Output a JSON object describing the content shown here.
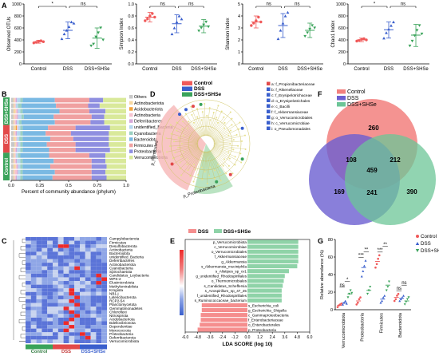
{
  "colors": {
    "control": "#f05a5a",
    "dss": "#3a5fcd",
    "dss_shse": "#3aa35a",
    "ctrl_bg": "#f6b4b4",
    "dss_bg": "#f5f5c8",
    "shse_bg": "#a8dab5",
    "venn_control": "#f2807e",
    "venn_dss": "#6c5fd1",
    "venn_shse": "#6cc597",
    "lda_dss": "#f58e8e",
    "lda_shse": "#8fd3a8"
  },
  "panels": {
    "A": "A",
    "B": "B",
    "C": "C",
    "D": "D",
    "E": "E",
    "F": "F",
    "G": "G"
  },
  "sig": {
    "ns": "ns",
    "star": "*",
    "star2": "**",
    "star3": "***"
  },
  "chart_data": [
    {
      "id": "A1",
      "type": "scatter",
      "ylabel": "Observed OTUs",
      "ylim": [
        0,
        1000
      ],
      "yticks": [
        0,
        200,
        400,
        600,
        800,
        1000
      ],
      "categories": [
        "Control",
        "DSS",
        "DSS+SHSe"
      ],
      "means": [
        370,
        560,
        430
      ],
      "sd_low": [
        345,
        420,
        260
      ],
      "sd_high": [
        395,
        700,
        600
      ],
      "points": [
        [
          350,
          360,
          375,
          385,
          370
        ],
        [
          420,
          500,
          560,
          620,
          700,
          680
        ],
        [
          300,
          330,
          450,
          520,
          600,
          400
        ]
      ],
      "brackets": [
        {
          "from": 0,
          "to": 1,
          "label": "*"
        },
        {
          "from": 1,
          "to": 2,
          "label": "ns"
        }
      ]
    },
    {
      "id": "A2",
      "type": "scatter",
      "ylabel": "Simpson Index",
      "ylim": [
        0,
        1.0
      ],
      "yticks": [
        "0.0",
        "0.2",
        "0.4",
        "0.6",
        "0.8",
        "1.0"
      ],
      "categories": [
        "Control",
        "DSS",
        "DSS+SHSe"
      ],
      "means": [
        0.78,
        0.67,
        0.63
      ],
      "sd_low": [
        0.7,
        0.52,
        0.52
      ],
      "sd_high": [
        0.86,
        0.82,
        0.74
      ],
      "points": [
        [
          0.72,
          0.75,
          0.8,
          0.84,
          0.78
        ],
        [
          0.5,
          0.6,
          0.7,
          0.8,
          0.75
        ],
        [
          0.55,
          0.6,
          0.65,
          0.7,
          0.62
        ]
      ],
      "brackets": [
        {
          "from": 0,
          "to": 1,
          "label": "ns"
        },
        {
          "from": 1,
          "to": 2,
          "label": "ns"
        }
      ]
    },
    {
      "id": "A3",
      "type": "scatter",
      "ylabel": "Shannon Index",
      "ylim": [
        0,
        5
      ],
      "yticks": [
        0,
        1,
        2,
        3,
        4,
        5
      ],
      "categories": [
        "Control",
        "DSS",
        "DSS+SHSe"
      ],
      "means": [
        3.5,
        3.2,
        2.8
      ],
      "sd_low": [
        3.0,
        2.2,
        2.2
      ],
      "sd_high": [
        4.0,
        4.2,
        3.4
      ],
      "points": [
        [
          3.2,
          3.4,
          3.6,
          3.9,
          3.5
        ],
        [
          2.1,
          2.8,
          3.4,
          4.0,
          4.3
        ],
        [
          2.3,
          2.6,
          2.9,
          3.2,
          3.0
        ]
      ],
      "brackets": [
        {
          "from": 0,
          "to": 1,
          "label": "ns"
        },
        {
          "from": 1,
          "to": 2,
          "label": "ns"
        }
      ]
    },
    {
      "id": "A4",
      "type": "scatter",
      "ylabel": "Chao1 Index",
      "ylim": [
        0,
        1000
      ],
      "yticks": [
        0,
        200,
        400,
        600,
        800,
        1000
      ],
      "categories": [
        "Control",
        "DSS",
        "DSS+SHSe"
      ],
      "means": [
        400,
        570,
        480
      ],
      "sd_low": [
        370,
        430,
        290
      ],
      "sd_high": [
        430,
        700,
        660
      ],
      "points": [
        [
          380,
          390,
          410,
          420,
          400
        ],
        [
          430,
          520,
          580,
          640,
          700
        ],
        [
          300,
          380,
          470,
          560,
          640,
          500
        ]
      ],
      "brackets": [
        {
          "from": 0,
          "to": 1,
          "label": "*"
        },
        {
          "from": 1,
          "to": 2,
          "label": "ns"
        }
      ]
    },
    {
      "id": "B",
      "type": "bar",
      "orientation": "horizontal",
      "stacked": true,
      "xlabel": "Percent of community abundance (phylum)",
      "xlim": [
        0,
        1.0
      ],
      "xticks": [
        "0.0",
        "0.25",
        "0.5",
        "0.75",
        "1.0"
      ],
      "groups": [
        "Control",
        "DSS",
        "DSS+SHSe"
      ],
      "legend": [
        "Others",
        "Actinobacteriota",
        "Acidobacteriota",
        "Actinobacteria",
        "Deferribacteres",
        "unidentified_Bacteria",
        "Cyanobacteria",
        "Bacteroidota",
        "Firmicutes",
        "Proteobacteria",
        "Verrucomicrobiota"
      ],
      "legend_colors": [
        "#c8c8c8",
        "#f7d7a0",
        "#f2a23c",
        "#f6c3d0",
        "#d5a8d8",
        "#b6d7ef",
        "#9ad0c1",
        "#7ab9e3",
        "#f0a0a0",
        "#8f8fe0",
        "#d9e99a"
      ],
      "rows": [
        [
          0.02,
          0.01,
          0.0,
          0.01,
          0.01,
          0.03,
          0.02,
          0.28,
          0.3,
          0.12,
          0.2
        ],
        [
          0.02,
          0.01,
          0.0,
          0.01,
          0.0,
          0.02,
          0.03,
          0.3,
          0.28,
          0.1,
          0.23
        ],
        [
          0.02,
          0.02,
          0.0,
          0.01,
          0.01,
          0.02,
          0.02,
          0.32,
          0.26,
          0.14,
          0.18
        ],
        [
          0.02,
          0.01,
          0.0,
          0.02,
          0.01,
          0.03,
          0.02,
          0.26,
          0.33,
          0.11,
          0.19
        ],
        [
          0.02,
          0.01,
          0.0,
          0.01,
          0.01,
          0.02,
          0.02,
          0.29,
          0.31,
          0.12,
          0.19
        ],
        [
          0.02,
          0.02,
          0.01,
          0.01,
          0.0,
          0.02,
          0.02,
          0.22,
          0.24,
          0.3,
          0.14
        ],
        [
          0.02,
          0.01,
          0.0,
          0.01,
          0.01,
          0.03,
          0.02,
          0.2,
          0.22,
          0.33,
          0.15
        ],
        [
          0.02,
          0.02,
          0.0,
          0.01,
          0.0,
          0.02,
          0.03,
          0.24,
          0.2,
          0.31,
          0.15
        ],
        [
          0.03,
          0.01,
          0.0,
          0.01,
          0.01,
          0.02,
          0.02,
          0.21,
          0.25,
          0.29,
          0.15
        ],
        [
          0.02,
          0.01,
          0.0,
          0.01,
          0.01,
          0.03,
          0.02,
          0.23,
          0.23,
          0.3,
          0.14
        ],
        [
          0.02,
          0.01,
          0.0,
          0.01,
          0.0,
          0.02,
          0.02,
          0.25,
          0.35,
          0.14,
          0.18
        ],
        [
          0.02,
          0.01,
          0.0,
          0.01,
          0.01,
          0.03,
          0.02,
          0.27,
          0.33,
          0.12,
          0.18
        ],
        [
          0.02,
          0.02,
          0.0,
          0.01,
          0.01,
          0.02,
          0.02,
          0.24,
          0.36,
          0.13,
          0.17
        ],
        [
          0.02,
          0.01,
          0.0,
          0.02,
          0.01,
          0.02,
          0.02,
          0.28,
          0.32,
          0.12,
          0.18
        ],
        [
          0.02,
          0.01,
          0.0,
          0.01,
          0.01,
          0.03,
          0.02,
          0.26,
          0.34,
          0.13,
          0.17
        ]
      ],
      "row_groups": [
        2,
        2,
        2,
        2,
        2,
        1,
        1,
        1,
        1,
        1,
        0,
        0,
        0,
        0,
        0
      ]
    },
    {
      "id": "C",
      "type": "heatmap",
      "groups": [
        "Control",
        "DSS",
        "DSS+SHSe"
      ],
      "scale_ticks": [
        "3.5",
        "3.0",
        "2.5",
        "2.0",
        "1.5",
        "1.0",
        "0.5",
        "0.0",
        "-0.5",
        "-1.0",
        "-1.5"
      ],
      "rows": [
        "Campylobacterota",
        "Firmicutes",
        "Desulfobacterota",
        "Actinobacteria",
        "Bacteroidota",
        "unidentified_Bacteria",
        "Deferribacteres",
        "Actinobacteriota",
        "Cyanobacteria",
        "Spirochaetota",
        "Candidatus_Leybacteria",
        "WPS-2",
        "Elusimicrobiota",
        "Methylomirabilota",
        "Krogiota",
        "NB1-j",
        "Latescibacterota",
        "RCP2-54",
        "Planctomycetota",
        "Gemmatimonadetes",
        "Chloroflexi",
        "Nitrospirota",
        "Acidobacteriota",
        "Bdellovibrionota",
        "Dependentiae",
        "Myxococcota",
        "Proteobacteria",
        "Deferribacterota",
        "Verrucomicrobiota"
      ],
      "hot_cells": [
        [
          2,
          6
        ],
        [
          2,
          7
        ],
        [
          8,
          9
        ],
        [
          14,
          8
        ],
        [
          15,
          8
        ],
        [
          16,
          9
        ],
        [
          17,
          8
        ],
        [
          18,
          9
        ],
        [
          19,
          7
        ],
        [
          20,
          8
        ],
        [
          21,
          9
        ],
        [
          22,
          8
        ],
        [
          23,
          7
        ],
        [
          24,
          8
        ],
        [
          25,
          7
        ],
        [
          10,
          13
        ],
        [
          11,
          14
        ],
        [
          12,
          13
        ],
        [
          26,
          10
        ],
        [
          27,
          11
        ]
      ]
    },
    {
      "id": "D",
      "type": "other",
      "subtype": "cladogram",
      "legend_groups": [
        "Control",
        "DSS",
        "DSS+SHSe"
      ],
      "sector_labels": [
        "p_Firmicutes",
        "p_Proteobacteria"
      ],
      "taxa": [
        "a: f_Propionibacteriaceae",
        "b: f_Rikenellaceae",
        "c: f_Erysipelotrichaceae",
        "d: o_Erysipelotrichales",
        "e: c_Bacilli",
        "f: f_Akkermansiaceae",
        "g: o_Verrucomicrobiales",
        "h: c_Verrucomicrobiae",
        "i: o_Pseudomonadales"
      ]
    },
    {
      "id": "E",
      "type": "bar",
      "orientation": "horizontal",
      "legend": [
        "DSS",
        "DSS+SHSe"
      ],
      "xlabel": "LDA SCORE (log 10)",
      "xlim": [
        -6.0,
        6.0
      ],
      "xticks": [
        "-6.0",
        "-4.8",
        "-3.6",
        "-2.4",
        "-1.2",
        "0.0",
        "1.2",
        "2.4",
        "3.6",
        "4.8",
        "6.0"
      ],
      "categories": [
        "p_Verrucomicrobiota",
        "c_Verrucomicrobiae",
        "o_Verrucomicrobiales",
        "f_Akkermansiaceae",
        "g_Akkermansia",
        "s_Akkermansia_muciniphila",
        "s_Alistipes_sp_cv1",
        "g_unidentified_Rhodospirillales",
        "o_Thermomicrobiales",
        "s_Candidatus_Scheffersia",
        "s_Azospirillum_sp_47_25",
        "f_unidentified_Rhodospirillales",
        "s_Ruminococcaceae_bacterium",
        "s_Escherichia_coli",
        "g_Escherichia_Shigella",
        "c_Gammaproteobacteria",
        "f_Enterobacteriaceae",
        "o_Enterobacterales",
        "p_Proteobacteria"
      ],
      "values": [
        4.9,
        4.9,
        4.9,
        4.9,
        4.9,
        4.8,
        4.0,
        3.6,
        3.5,
        3.4,
        3.3,
        3.3,
        3.3,
        -4.4,
        -4.4,
        -4.5,
        -4.5,
        -4.6,
        -4.8
      ]
    },
    {
      "id": "F",
      "type": "other",
      "subtype": "venn",
      "sets": [
        "Control",
        "DSS",
        "DSS+SHSe"
      ],
      "regions": {
        "only_control": 260,
        "only_dss": 169,
        "only_shse": 390,
        "control_dss": 108,
        "control_shse": 212,
        "dss_shse": 241,
        "all": 459
      }
    },
    {
      "id": "G",
      "type": "scatter",
      "ylabel": "Relative abundance (%)",
      "ylim": [
        0,
        80
      ],
      "yticks": [
        0,
        20,
        40,
        60,
        80
      ],
      "categories": [
        "Verrucomicrobiota",
        "Proteobacteria",
        "Firmicutes",
        "Bacteroidota"
      ],
      "legend": [
        "Control",
        "DSS",
        "DSS+SHSe"
      ],
      "means": [
        [
          5,
          8,
          18
        ],
        [
          10,
          48,
          22
        ],
        [
          55,
          12,
          28
        ],
        [
          14,
          13,
          10
        ]
      ],
      "points": [
        [
          [
            3,
            5,
            6,
            7
          ],
          [
            6,
            8,
            10,
            7
          ],
          [
            14,
            18,
            22,
            19
          ]
        ],
        [
          [
            6,
            8,
            12,
            14
          ],
          [
            38,
            44,
            50,
            56
          ],
          [
            18,
            22,
            26
          ]
        ],
        [
          [
            48,
            52,
            58,
            62
          ],
          [
            8,
            10,
            14,
            16
          ],
          [
            22,
            26,
            32
          ]
        ],
        [
          [
            10,
            12,
            16,
            18
          ],
          [
            10,
            12,
            14,
            16
          ],
          [
            6,
            9,
            12,
            14
          ]
        ]
      ],
      "brackets": [
        {
          "cat": 0,
          "pairs": [
            [
              "ns",
              0,
              1
            ],
            [
              "*",
              1,
              2
            ]
          ]
        },
        {
          "cat": 1,
          "pairs": [
            [
              "***",
              0,
              1
            ],
            [
              "**",
              1,
              2
            ]
          ]
        },
        {
          "cat": 2,
          "pairs": [
            [
              "***",
              0,
              1
            ],
            [
              "**",
              1,
              2
            ]
          ]
        },
        {
          "cat": 3,
          "pairs": [
            [
              "ns",
              0,
              1
            ],
            [
              "ns",
              1,
              2
            ]
          ]
        }
      ]
    }
  ]
}
